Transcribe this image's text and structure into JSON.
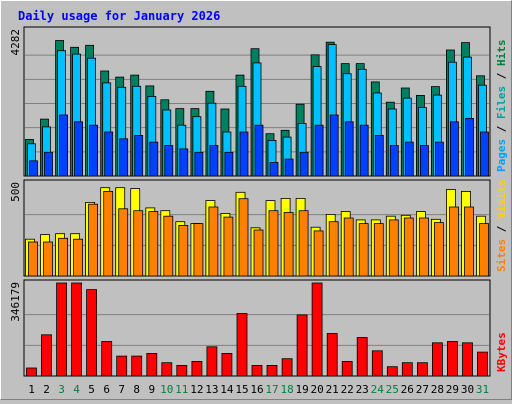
{
  "chart_data": {
    "type": "bar",
    "title": "Daily usage for January 2026",
    "categories": [
      "1",
      "2",
      "3",
      "4",
      "5",
      "6",
      "7",
      "8",
      "9",
      "10",
      "11",
      "12",
      "13",
      "14",
      "15",
      "16",
      "17",
      "18",
      "19",
      "20",
      "21",
      "22",
      "23",
      "24",
      "25",
      "26",
      "27",
      "28",
      "29",
      "30",
      "31"
    ],
    "weekend_categories": [
      "3",
      "4",
      "10",
      "11",
      "17",
      "18",
      "24",
      "25",
      "31"
    ],
    "panels": [
      {
        "name": "hits-files-pages",
        "axis_label": "4282",
        "ylim": [
          0,
          4282
        ],
        "legend": [
          {
            "text": "Pages",
            "color": "#00a0ff"
          },
          {
            "text": " / ",
            "color": "#000000"
          },
          {
            "text": "Files",
            "color": "#00a0a0"
          },
          {
            "text": " / ",
            "color": "#000000"
          },
          {
            "text": "Hits",
            "color": "#008040"
          }
        ],
        "series": [
          {
            "name": "Hits",
            "color": "#008060",
            "values": [
              1080,
              1680,
              4000,
              3800,
              3860,
              3100,
              2920,
              2980,
              2660,
              2250,
              1990,
              1990,
              2500,
              1980,
              2980,
              3760,
              1250,
              1350,
              2120,
              3580,
              3950,
              3320,
              3320,
              2780,
              2180,
              2600,
              2380,
              2640,
              3720,
              3940,
              2960
            ]
          },
          {
            "name": "Files",
            "color": "#00c0ff",
            "values": [
              950,
              1450,
              3700,
              3600,
              3480,
              2750,
              2620,
              2650,
              2350,
              1950,
              1500,
              1750,
              2150,
              1300,
              2650,
              3340,
              1050,
              1150,
              1550,
              3230,
              3880,
              3020,
              3150,
              2450,
              1980,
              2300,
              2020,
              2390,
              3360,
              3510,
              2680
            ]
          },
          {
            "name": "Pages",
            "color": "#0040ff",
            "values": [
              450,
              700,
              1800,
              1600,
              1500,
              1300,
              1100,
              1200,
              1000,
              900,
              800,
              700,
              900,
              700,
              1300,
              1500,
              400,
              500,
              700,
              1500,
              1800,
              1600,
              1500,
              1200,
              900,
              1000,
              900,
              1000,
              1600,
              1700,
              1300
            ]
          }
        ]
      },
      {
        "name": "visits-sites",
        "axis_label": "500",
        "ylim": [
          0,
          500
        ],
        "legend": [
          {
            "text": "Sites",
            "color": "#ff8000"
          },
          {
            "text": " / ",
            "color": "#000000"
          },
          {
            "text": "Visits",
            "color": "#ffd000"
          }
        ],
        "series": [
          {
            "name": "Visits",
            "color": "#ffff00",
            "values": [
              200,
              225,
              230,
              230,
              400,
              480,
              480,
              475,
              370,
              355,
              295,
              285,
              410,
              340,
              455,
              262,
              410,
              422,
              422,
              265,
              335,
              350,
              305,
              305,
              325,
              330,
              350,
              308,
              470,
              460,
              325
            ]
          },
          {
            "name": "Sites",
            "color": "#ff8000",
            "values": [
              185,
              185,
              205,
              200,
              390,
              460,
              365,
              355,
              350,
              325,
              275,
              285,
              375,
              320,
              420,
              250,
              355,
              345,
              355,
              245,
              295,
              315,
              285,
              285,
              305,
              315,
              315,
              290,
              375,
              375,
              285
            ]
          }
        ]
      },
      {
        "name": "kbytes",
        "axis_label": "346179",
        "ylim": [
          0,
          346179
        ],
        "legend": [
          {
            "text": "KBytes",
            "color": "#ff0000"
          }
        ],
        "series": [
          {
            "name": "KBytes",
            "color": "#ff0000",
            "values": [
              30000,
              155000,
              350000,
              350000,
              325000,
              130000,
              75000,
              75000,
              85000,
              50000,
              40000,
              55000,
              110000,
              85000,
              235000,
              40000,
              40000,
              65000,
              230000,
              350000,
              160000,
              55000,
              145000,
              95000,
              35000,
              50000,
              50000,
              125000,
              130000,
              125000,
              90000
            ]
          }
        ]
      }
    ]
  }
}
